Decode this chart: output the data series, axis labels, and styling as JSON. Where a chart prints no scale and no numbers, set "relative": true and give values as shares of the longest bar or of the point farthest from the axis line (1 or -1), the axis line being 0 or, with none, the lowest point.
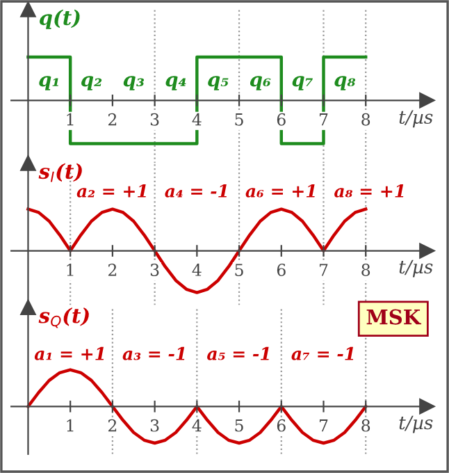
{
  "chart_data": [
    {
      "type": "step",
      "ylabel": "q(t)",
      "xlabel": "t/µs",
      "relative": true,
      "xlim": [
        -0.4,
        9.6
      ],
      "xticks": [
        1,
        2,
        3,
        4,
        5,
        6,
        7,
        8
      ],
      "tick_labels": "x",
      "series": [
        {
          "color": "#1e8c1e",
          "x": [
            0,
            1,
            4,
            6,
            7,
            8
          ],
          "values": [
            1,
            -1,
            1,
            -1,
            1,
            1
          ]
        }
      ],
      "ref_lines": [
        {
          "axis": "x",
          "value": 3,
          "color": "#999999",
          "line_style": "dotted"
        },
        {
          "axis": "x",
          "value": 5,
          "color": "#999999",
          "line_style": "dotted"
        },
        {
          "axis": "x",
          "value": 7,
          "color": "#999999",
          "line_style": "dotted"
        },
        {
          "axis": "x",
          "value": 8,
          "color": "#999999",
          "line_style": "dotted"
        }
      ],
      "annotations": [
        "q₁",
        "q₂",
        "q₃",
        "q₄",
        "q₅",
        "q₆",
        "q₇",
        "q₈"
      ]
    },
    {
      "type": "line",
      "ylabel": "s$_{I}$(t)",
      "xlabel": "t/µs",
      "relative": true,
      "xlim": [
        -0.4,
        9.6
      ],
      "xticks": [
        1,
        2,
        3,
        4,
        5,
        6,
        7,
        8
      ],
      "tick_labels": "x",
      "series": [
        {
          "color": "#cc0000",
          "x": [
            0,
            0.25,
            0.5,
            0.75,
            1,
            1.25,
            1.5,
            1.75,
            2,
            2.25,
            2.5,
            2.75,
            3,
            3.25,
            3.5,
            3.75,
            4,
            4.25,
            4.5,
            4.75,
            5,
            5.25,
            5.5,
            5.75,
            6,
            6.25,
            6.5,
            6.75,
            7,
            7.25,
            7.5,
            7.75,
            8
          ],
          "values": [
            1,
            0.92,
            0.71,
            0.38,
            0,
            0.38,
            0.71,
            0.92,
            1,
            0.92,
            0.71,
            0.38,
            0,
            -0.38,
            -0.71,
            -0.92,
            -1,
            -0.92,
            -0.71,
            -0.38,
            0,
            0.38,
            0.71,
            0.92,
            1,
            0.92,
            0.71,
            0.38,
            0,
            0.38,
            0.71,
            0.92,
            1
          ]
        }
      ],
      "ref_lines": [
        {
          "axis": "x",
          "value": 1,
          "color": "#999999",
          "line_style": "dotted"
        },
        {
          "axis": "x",
          "value": 3,
          "color": "#999999",
          "line_style": "dotted"
        },
        {
          "axis": "x",
          "value": 5,
          "color": "#999999",
          "line_style": "dotted"
        },
        {
          "axis": "x",
          "value": 7,
          "color": "#999999",
          "line_style": "dotted"
        },
        {
          "axis": "x",
          "value": 8,
          "color": "#999999",
          "line_style": "dotted"
        }
      ],
      "annotations": [
        "a₂ = +1",
        "a₄ = -1",
        "a₆ = +1",
        "a₈ = +1"
      ]
    },
    {
      "type": "line",
      "ylabel": "s$_{Q}$(t)",
      "xlabel": "t/µs",
      "relative": true,
      "xlim": [
        -0.4,
        9.6
      ],
      "xticks": [
        1,
        2,
        3,
        4,
        5,
        6,
        7,
        8
      ],
      "tick_labels": "x",
      "series": [
        {
          "color": "#cc0000",
          "x": [
            0,
            0.25,
            0.5,
            0.75,
            1,
            1.25,
            1.5,
            1.75,
            2,
            2.25,
            2.5,
            2.75,
            3,
            3.25,
            3.5,
            3.75,
            4,
            4.25,
            4.5,
            4.75,
            5,
            5.25,
            5.5,
            5.75,
            6,
            6.25,
            6.5,
            6.75,
            7,
            7.25,
            7.5,
            7.75,
            8
          ],
          "values": [
            0,
            0.38,
            0.71,
            0.92,
            1,
            0.92,
            0.71,
            0.38,
            0,
            -0.38,
            -0.71,
            -0.92,
            -1,
            -0.92,
            -0.71,
            -0.38,
            0,
            -0.38,
            -0.71,
            -0.92,
            -1,
            -0.92,
            -0.71,
            -0.38,
            0,
            -0.38,
            -0.71,
            -0.92,
            -1,
            -0.92,
            -0.71,
            -0.38,
            0
          ]
        }
      ],
      "ref_lines": [
        {
          "axis": "x",
          "value": 2,
          "color": "#999999",
          "line_style": "dotted"
        },
        {
          "axis": "x",
          "value": 4,
          "color": "#999999",
          "line_style": "dotted"
        },
        {
          "axis": "x",
          "value": 6,
          "color": "#999999",
          "line_style": "dotted"
        },
        {
          "axis": "x",
          "value": 8,
          "color": "#999999",
          "line_style": "dotted"
        }
      ],
      "annotations": [
        "a₁ = +1",
        "a₃ = -1",
        "a₅ = -1",
        "a₇ = -1",
        "MSK"
      ]
    }
  ]
}
